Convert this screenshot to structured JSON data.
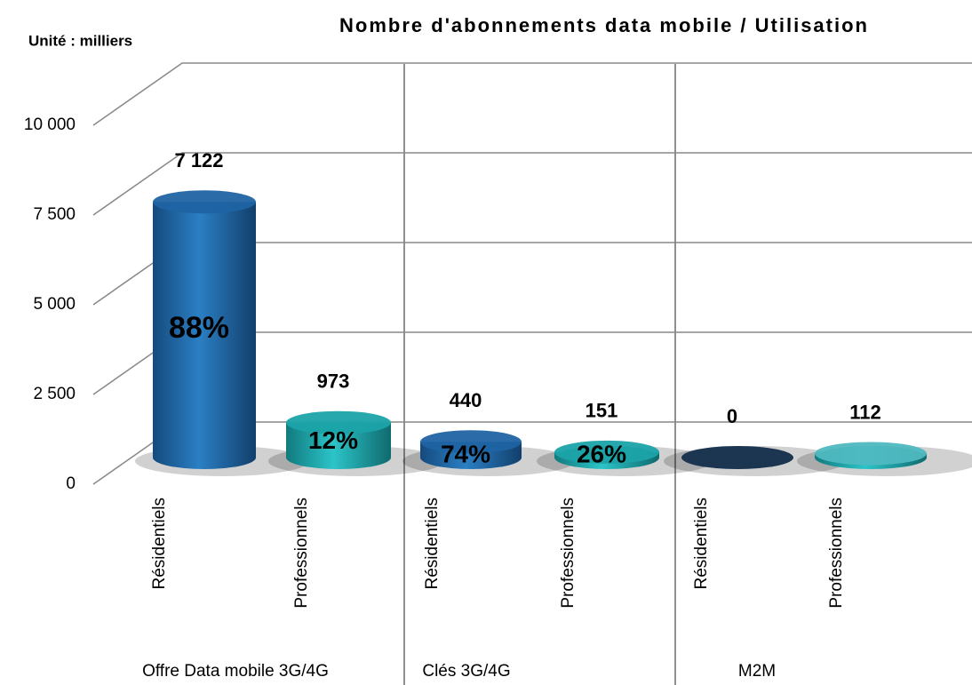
{
  "chart_data": {
    "type": "bar",
    "title": "Nombre d'abonnements data mobile / Utilisation",
    "subtitle": "Unité : milliers",
    "categories": [
      "Résidentiels",
      "Professionnels",
      "Résidentiels",
      "Professionnels",
      "Résidentiels",
      "Professionnels"
    ],
    "groups": [
      "Offre Data mobile 3G/4G",
      "Clés 3G/4G",
      "M2M"
    ],
    "values": [
      7122,
      973,
      440,
      151,
      0,
      112
    ],
    "value_labels": [
      "7 122",
      "973",
      "440",
      "151",
      "0",
      "112"
    ],
    "shares": {
      "values": [
        88,
        12,
        74,
        26,
        null,
        null
      ],
      "value_labels": [
        "88%",
        "12%",
        "74%",
        "26%",
        null,
        null
      ]
    },
    "colors": [
      "#1f63a3",
      "#1ba3a8",
      "#1f63a3",
      "#1ba3a8",
      "#1c3550",
      "#4fb8c0"
    ],
    "ylim": [
      0,
      10000
    ],
    "yticks": [
      0,
      {
        "value": 2500,
        "label": "2 500"
      },
      {
        "value": 5000,
        "label": "5 000"
      },
      {
        "value": 7500,
        "label": "7 500"
      },
      {
        "value": 10000,
        "label": "10 000"
      }
    ],
    "grid": true
  }
}
